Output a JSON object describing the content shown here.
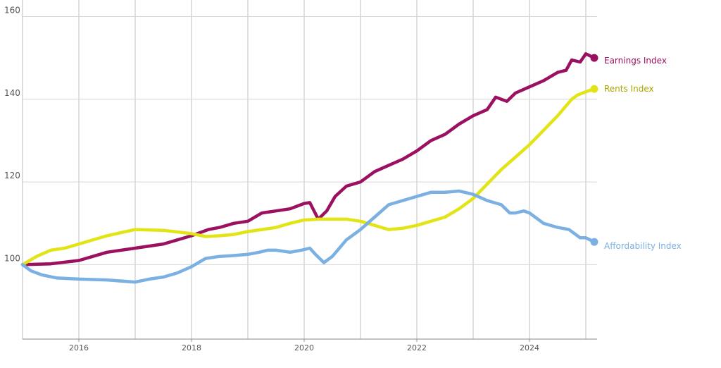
{
  "chart_data": {
    "type": "line",
    "title": "",
    "xlabel": "",
    "ylabel": "",
    "xlim": [
      2015.0,
      2025.2
    ],
    "ylim": [
      82,
      164
    ],
    "grid": true,
    "legend": "end-of-line labels",
    "yticks": [
      100,
      120,
      140,
      160
    ],
    "xticks": [
      2016,
      2018,
      2020,
      2022,
      2024
    ],
    "xtick_labels": [
      "2016",
      "2018",
      "2020",
      "2022",
      "2024"
    ],
    "ytick_labels": [
      "100",
      "120",
      "140",
      "160"
    ],
    "series": [
      {
        "name": "Earnings Index",
        "color": "#9b1060",
        "x": [
          2015.0,
          2015.5,
          2016.0,
          2016.5,
          2017.0,
          2017.5,
          2018.0,
          2018.3,
          2018.5,
          2018.75,
          2019.0,
          2019.25,
          2019.5,
          2019.75,
          2020.0,
          2020.1,
          2020.25,
          2020.4,
          2020.55,
          2020.75,
          2021.0,
          2021.25,
          2021.5,
          2021.75,
          2022.0,
          2022.25,
          2022.5,
          2022.75,
          2023.0,
          2023.25,
          2023.4,
          2023.5,
          2023.6,
          2023.75,
          2024.0,
          2024.25,
          2024.5,
          2024.65,
          2024.75,
          2024.9,
          2025.0,
          2025.15
        ],
        "y": [
          100,
          100.2,
          101,
          103,
          104,
          105,
          107,
          108.5,
          109,
          110,
          110.5,
          112.5,
          113,
          113.5,
          114.8,
          115,
          111,
          113,
          116.5,
          119,
          120,
          122.5,
          124,
          125.5,
          127.5,
          130,
          131.5,
          134,
          136,
          137.5,
          140.5,
          140,
          139.5,
          141.5,
          143,
          144.5,
          146.5,
          147,
          149.5,
          149,
          151,
          150
        ]
      },
      {
        "name": "Rents Index",
        "color": "#e2e415",
        "x": [
          2015.0,
          2015.25,
          2015.5,
          2015.75,
          2016.0,
          2016.5,
          2017.0,
          2017.5,
          2018.0,
          2018.25,
          2018.5,
          2018.75,
          2019.0,
          2019.25,
          2019.5,
          2019.75,
          2020.0,
          2020.25,
          2020.5,
          2020.75,
          2021.0,
          2021.25,
          2021.5,
          2021.75,
          2022.0,
          2022.25,
          2022.5,
          2022.75,
          2023.0,
          2023.25,
          2023.5,
          2023.75,
          2024.0,
          2024.25,
          2024.5,
          2024.75,
          2024.85,
          2025.0,
          2025.15
        ],
        "y": [
          100,
          102,
          103.5,
          104,
          105,
          107,
          108.5,
          108.3,
          107.5,
          106.8,
          107,
          107.3,
          108,
          108.5,
          109,
          110,
          110.8,
          111,
          111,
          111,
          110.5,
          109.5,
          108.5,
          108.8,
          109.5,
          110.5,
          111.5,
          113.5,
          116,
          119.5,
          123,
          126,
          129,
          132.5,
          136,
          140,
          141,
          141.8,
          142.5
        ]
      },
      {
        "name": "Affordability Index",
        "color": "#7ab0e2",
        "x": [
          2015.0,
          2015.15,
          2015.35,
          2015.6,
          2016.0,
          2016.5,
          2017.0,
          2017.25,
          2017.5,
          2017.75,
          2018.0,
          2018.25,
          2018.5,
          2018.75,
          2019.0,
          2019.2,
          2019.35,
          2019.5,
          2019.75,
          2019.95,
          2020.1,
          2020.2,
          2020.35,
          2020.5,
          2020.75,
          2021.0,
          2021.25,
          2021.5,
          2021.75,
          2022.0,
          2022.25,
          2022.5,
          2022.75,
          2022.85,
          2023.0,
          2023.25,
          2023.5,
          2023.65,
          2023.75,
          2023.9,
          2024.0,
          2024.25,
          2024.5,
          2024.7,
          2024.8,
          2024.9,
          2025.0,
          2025.15
        ],
        "y": [
          100,
          98.5,
          97.5,
          96.8,
          96.5,
          96.3,
          95.8,
          96.5,
          97,
          98,
          99.5,
          101.5,
          102,
          102.2,
          102.5,
          103,
          103.5,
          103.5,
          103,
          103.5,
          104,
          102.5,
          100.5,
          102,
          106,
          108.5,
          111.5,
          114.5,
          115.5,
          116.5,
          117.5,
          117.5,
          117.8,
          117.5,
          117,
          115.5,
          114.5,
          112.5,
          112.5,
          113,
          112.5,
          110,
          109,
          108.5,
          107.5,
          106.5,
          106.5,
          105.5
        ]
      }
    ]
  }
}
